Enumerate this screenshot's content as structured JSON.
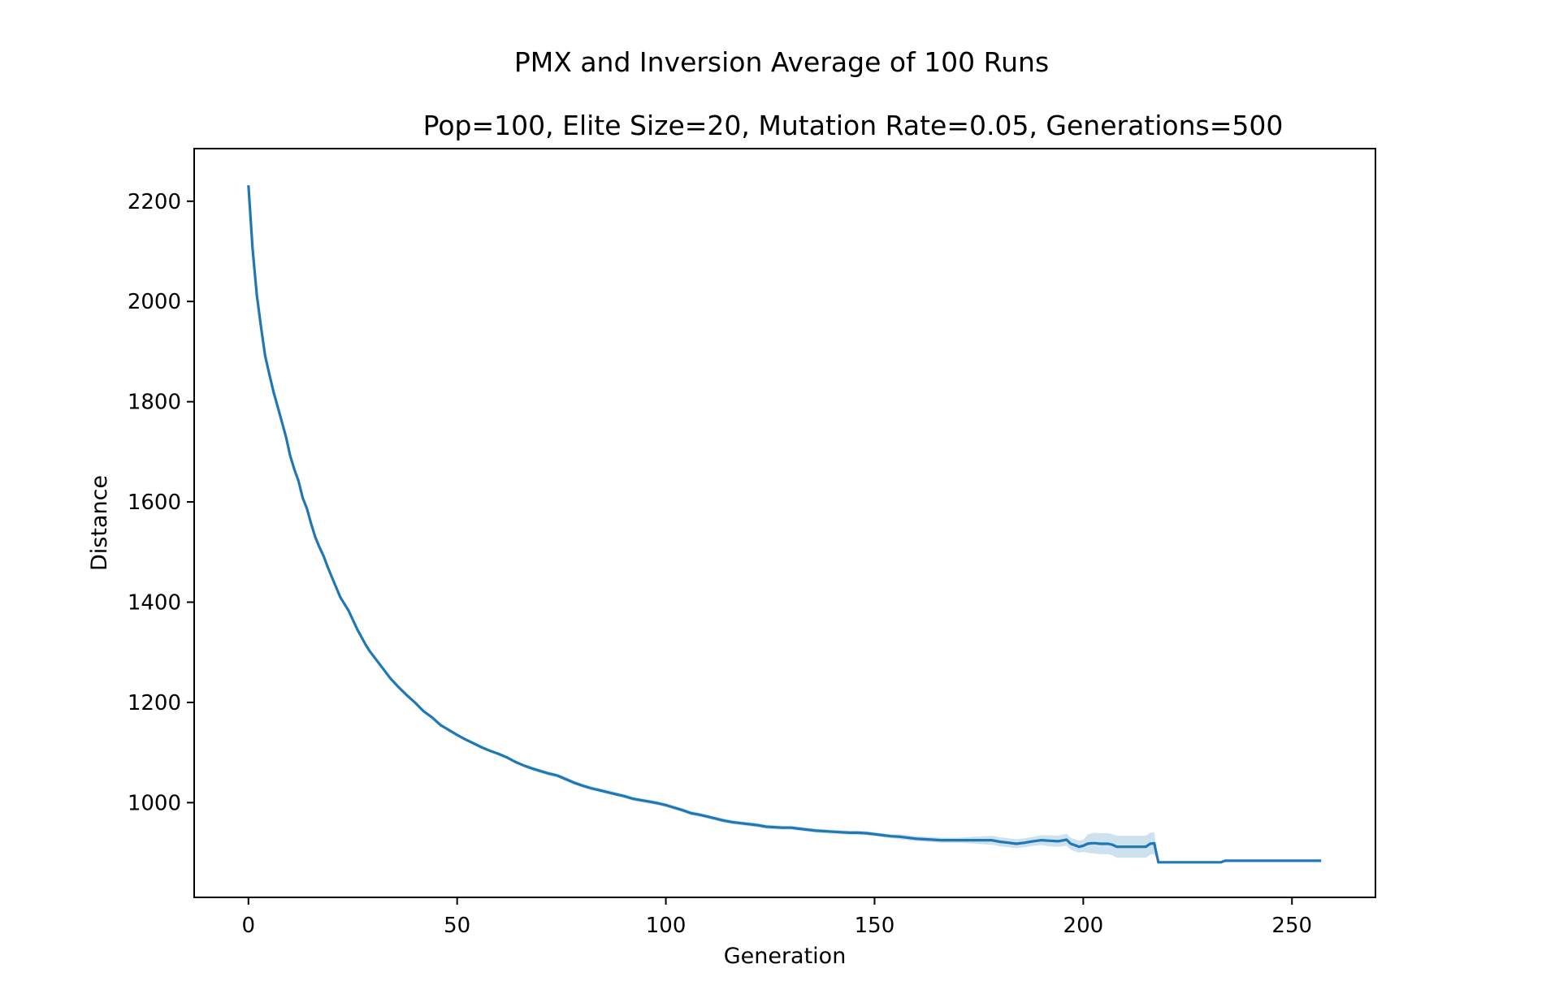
{
  "chart_data": {
    "type": "line",
    "title": "PMX and Inversion Average of 100 Runs",
    "subtitle": "Pop=100, Elite Size=20, Mutation Rate=0.05, Generations=500",
    "xlabel": "Generation",
    "ylabel": "Distance",
    "xlim": [
      -13,
      270
    ],
    "ylim": [
      811,
      2305
    ],
    "xticks": [
      0,
      50,
      100,
      150,
      200,
      250
    ],
    "yticks": [
      1000,
      1200,
      1400,
      1600,
      1800,
      2000,
      2200
    ],
    "grid": false,
    "line_color": "#1f77b4",
    "band_color": "#1f77b4",
    "series": [
      {
        "x": [
          0,
          1,
          2,
          3,
          4,
          5,
          6,
          7,
          8,
          9,
          10,
          11,
          12,
          13,
          14,
          15,
          16,
          17,
          18,
          19,
          20,
          22,
          24,
          26,
          28,
          29,
          30,
          32,
          34,
          36,
          38,
          40,
          42,
          44,
          46,
          48,
          50,
          52,
          54,
          56,
          58,
          60,
          62,
          64,
          66,
          68,
          70,
          72,
          74,
          76,
          78,
          80,
          82,
          84,
          86,
          88,
          90,
          92,
          94,
          96,
          98,
          100,
          102,
          104,
          106,
          108,
          110,
          112,
          114,
          116,
          118,
          120,
          122,
          124,
          126,
          128,
          130,
          132,
          134,
          136,
          138,
          140,
          142,
          144,
          146,
          148,
          150,
          152,
          154,
          156,
          158,
          160,
          162,
          164,
          166,
          168,
          170,
          172,
          174,
          176,
          178,
          180,
          182,
          184,
          186,
          188,
          190,
          192,
          194,
          196,
          197,
          198,
          199,
          200,
          201,
          202,
          203,
          204,
          205,
          206,
          207,
          208,
          209,
          210,
          211,
          212,
          213,
          214,
          215,
          216,
          217,
          218,
          220,
          225,
          230,
          233,
          234,
          235,
          240,
          245,
          250,
          255,
          257
        ],
        "y": [
          2232,
          2105,
          2013,
          1950,
          1892,
          1855,
          1820,
          1790,
          1760,
          1730,
          1692,
          1665,
          1642,
          1608,
          1587,
          1557,
          1530,
          1510,
          1492,
          1470,
          1450,
          1410,
          1383,
          1347,
          1316,
          1303,
          1292,
          1270,
          1248,
          1230,
          1214,
          1199,
          1182,
          1170,
          1155,
          1145,
          1135,
          1126,
          1118,
          1110,
          1103,
          1097,
          1090,
          1081,
          1074,
          1068,
          1063,
          1058,
          1054,
          1047,
          1040,
          1034,
          1029,
          1025,
          1021,
          1017,
          1013,
          1008,
          1005,
          1002,
          999,
          995,
          990,
          985,
          979,
          976,
          972,
          968,
          964,
          961,
          959,
          957,
          955,
          952,
          951,
          950,
          950,
          948,
          946,
          944,
          943,
          942,
          941,
          940,
          940,
          939,
          937,
          935,
          933,
          932,
          930,
          928,
          927,
          926,
          925,
          925,
          925,
          925,
          925,
          925,
          925,
          922,
          920,
          918,
          920,
          923,
          925,
          924,
          923,
          926,
          918,
          915,
          912,
          914,
          918,
          919,
          919,
          918,
          918,
          918,
          916,
          912,
          912,
          912,
          912,
          912,
          912,
          912,
          912,
          918,
          919,
          881,
          881,
          881,
          881,
          881,
          884,
          884,
          884,
          884,
          884,
          884,
          884
        ],
        "lower": [
          2232,
          2105,
          2013,
          1950,
          1892,
          1855,
          1820,
          1790,
          1760,
          1730,
          1692,
          1665,
          1642,
          1608,
          1587,
          1557,
          1530,
          1510,
          1492,
          1470,
          1450,
          1410,
          1383,
          1345,
          1314,
          1300,
          1289,
          1267,
          1245,
          1227,
          1211,
          1196,
          1179,
          1167,
          1152,
          1142,
          1132,
          1123,
          1115,
          1107,
          1100,
          1094,
          1087,
          1078,
          1071,
          1064,
          1059,
          1054,
          1050,
          1043,
          1036,
          1030,
          1025,
          1021,
          1017,
          1013,
          1009,
          1004,
          1001,
          998,
          995,
          991,
          986,
          981,
          975,
          972,
          968,
          964,
          960,
          957,
          955,
          953,
          951,
          948,
          947,
          946,
          946,
          944,
          942,
          940,
          939,
          938,
          937,
          936,
          936,
          935,
          933,
          931,
          929,
          927,
          925,
          923,
          922,
          921,
          920,
          920,
          920,
          919,
          918,
          917,
          916,
          913,
          911,
          909,
          911,
          914,
          915,
          913,
          912,
          914,
          906,
          903,
          900,
          902,
          900,
          899,
          898,
          897,
          897,
          897,
          895,
          890,
          890,
          890,
          890,
          890,
          890,
          890,
          890,
          896,
          897,
          881,
          881,
          881,
          881,
          881,
          884,
          884,
          884,
          884,
          884,
          884,
          884
        ],
        "upper": [
          2232,
          2105,
          2013,
          1950,
          1892,
          1855,
          1820,
          1790,
          1760,
          1730,
          1692,
          1665,
          1642,
          1608,
          1587,
          1557,
          1530,
          1510,
          1492,
          1470,
          1450,
          1410,
          1383,
          1349,
          1318,
          1306,
          1295,
          1273,
          1251,
          1233,
          1217,
          1202,
          1185,
          1173,
          1158,
          1148,
          1138,
          1129,
          1121,
          1113,
          1106,
          1100,
          1093,
          1084,
          1077,
          1072,
          1067,
          1062,
          1058,
          1051,
          1044,
          1038,
          1033,
          1029,
          1025,
          1021,
          1017,
          1012,
          1009,
          1006,
          1003,
          999,
          994,
          989,
          983,
          980,
          976,
          972,
          968,
          965,
          963,
          961,
          959,
          956,
          955,
          954,
          954,
          952,
          950,
          948,
          947,
          946,
          945,
          944,
          944,
          943,
          941,
          939,
          937,
          937,
          935,
          933,
          932,
          931,
          930,
          930,
          930,
          931,
          932,
          933,
          934,
          931,
          929,
          927,
          929,
          932,
          935,
          935,
          934,
          938,
          930,
          927,
          924,
          926,
          936,
          939,
          940,
          939,
          939,
          939,
          937,
          934,
          934,
          934,
          934,
          934,
          934,
          934,
          934,
          940,
          941,
          881,
          881,
          881,
          881,
          881,
          884,
          884,
          884,
          884,
          884,
          884,
          884
        ]
      }
    ]
  }
}
